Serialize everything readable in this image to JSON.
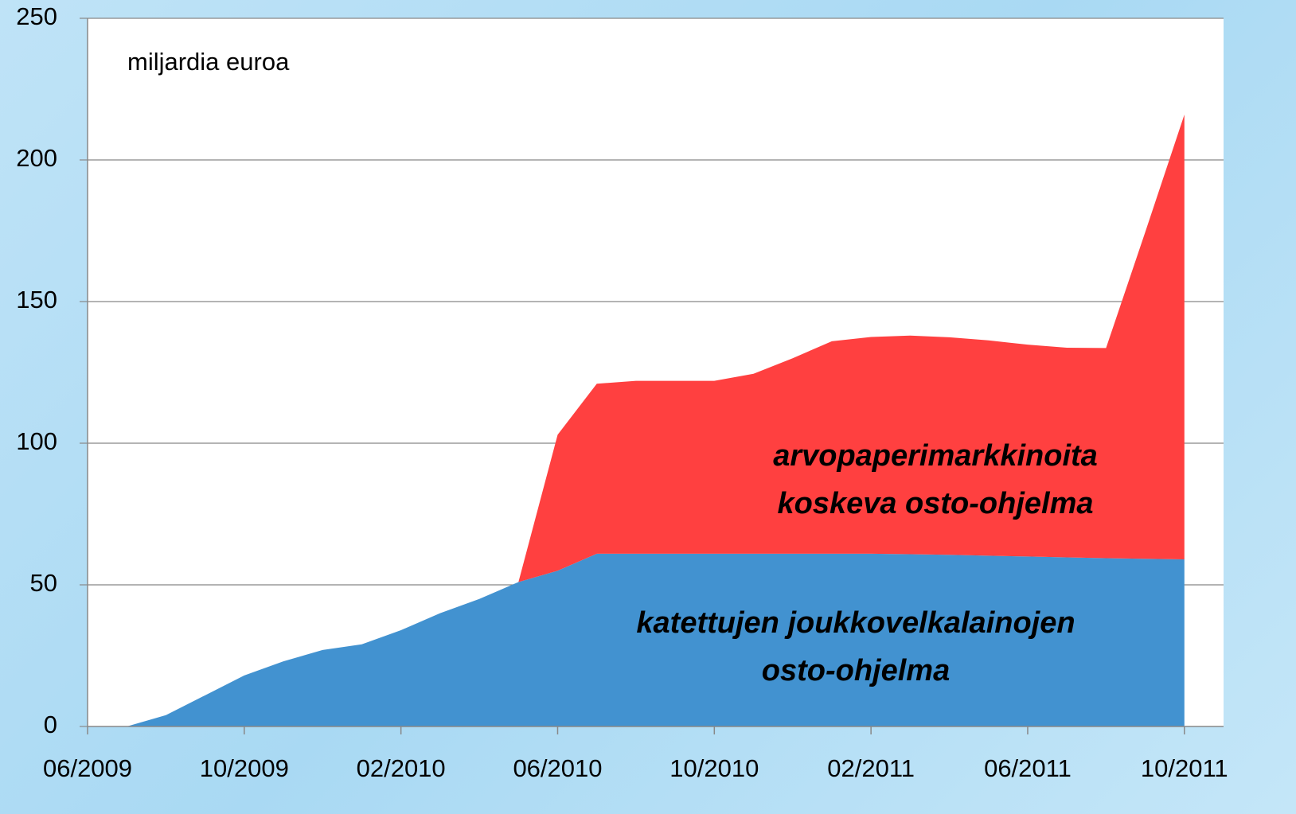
{
  "chart_data": {
    "type": "stacked_area",
    "annotations": {
      "unit": "miljardia euroa"
    },
    "x": [
      "07/2009",
      "08/2009",
      "09/2009",
      "10/2009",
      "11/2009",
      "12/2009",
      "01/2010",
      "02/2010",
      "03/2010",
      "04/2010",
      "05/2010",
      "06/2010",
      "07/2010",
      "08/2010",
      "09/2010",
      "10/2010",
      "11/2010",
      "12/2010",
      "01/2011",
      "02/2011",
      "03/2011",
      "04/2011",
      "05/2011",
      "06/2011",
      "07/2011",
      "08/2011",
      "09/2011",
      "10/2011"
    ],
    "series": [
      {
        "name": [
          "katettujen joukkovelkalainojen",
          "osto-ohjelma"
        ],
        "color": "#4292d0",
        "values": [
          0,
          4,
          11,
          18,
          23,
          27,
          29,
          34,
          40,
          45,
          51,
          55,
          61,
          61,
          61,
          61,
          61,
          61,
          61,
          61,
          60.8,
          60.6,
          60.3,
          60,
          59.7,
          59.4,
          59.2,
          59
        ]
      },
      {
        "name": [
          "arvopaperimarkkinoita",
          "koskeva osto-ohjelma"
        ],
        "color": "#ff4040",
        "values": [
          null,
          null,
          null,
          null,
          null,
          null,
          null,
          null,
          null,
          null,
          0,
          48,
          60,
          61,
          61,
          61,
          63.5,
          69,
          75,
          76.5,
          77.2,
          76.8,
          76,
          74.8,
          74,
          74.2,
          115.3,
          157
        ]
      }
    ],
    "xlim": [
      "06/2009",
      "11/2011"
    ],
    "xticks": [
      "06/2009",
      "10/2009",
      "02/2010",
      "06/2010",
      "10/2010",
      "02/2011",
      "06/2011",
      "10/2011"
    ],
    "ylim": [
      0,
      250
    ],
    "yticks": [
      0,
      50,
      100,
      150,
      200,
      250
    ],
    "grid": true
  }
}
